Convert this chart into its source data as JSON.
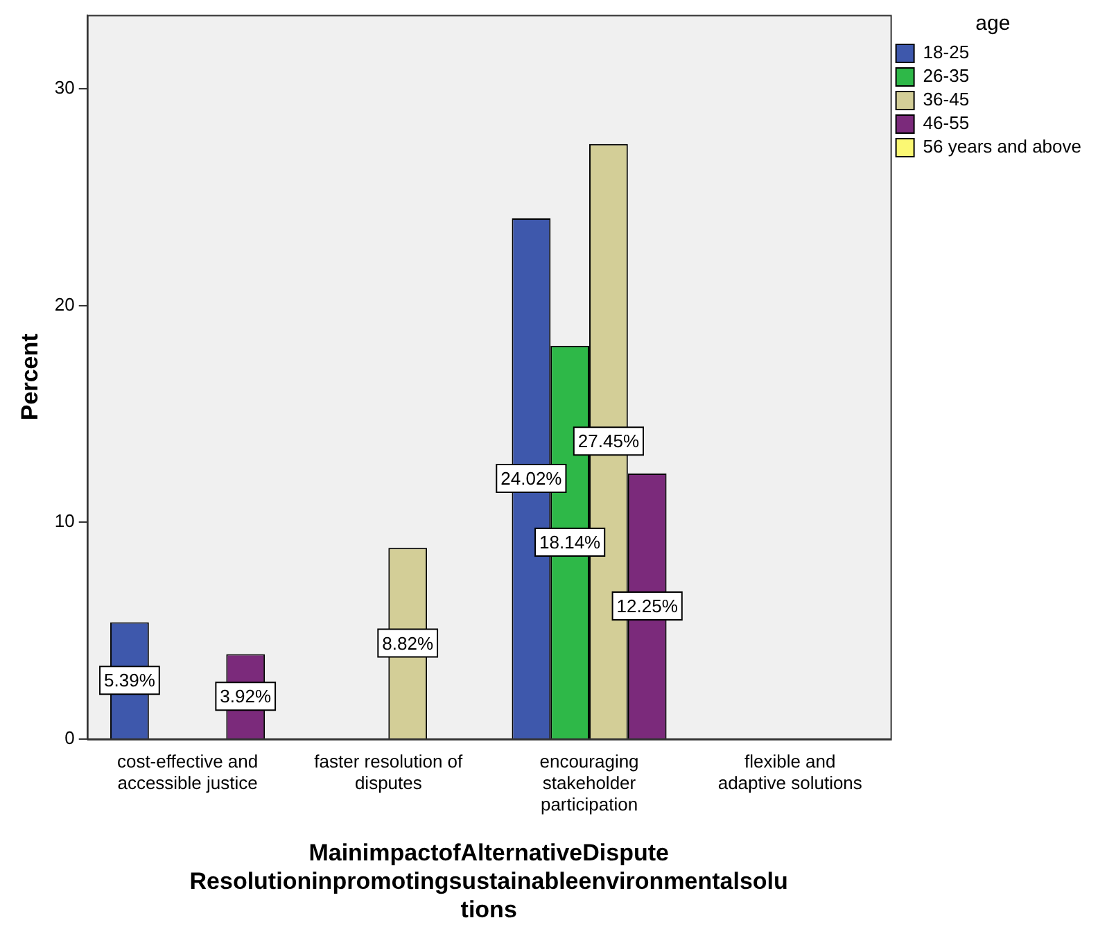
{
  "chart_data": {
    "type": "bar",
    "xlabel": "MainimpactofAlternativeDispute\nResolutioninpromotingsustainableenvironmentalsolu\ntions",
    "ylabel": "Percent",
    "legend_title": "age",
    "legend": "right",
    "categories": [
      "cost-effective and\naccessible justice",
      "faster resolution of\ndisputes",
      "encouraging\nstakeholder\nparticipation",
      "flexible and\nadaptive solutions"
    ],
    "series": [
      {
        "name": "18-25",
        "color": "#3e58ac",
        "values": [
          5.39,
          null,
          24.02,
          null
        ],
        "value_labels": [
          "5.39%",
          null,
          "24.02%",
          null
        ]
      },
      {
        "name": "26-35",
        "color": "#2eb848",
        "values": [
          null,
          null,
          18.14,
          null
        ],
        "value_labels": [
          null,
          null,
          "18.14%",
          null
        ]
      },
      {
        "name": "36-45",
        "color": "#d3ce97",
        "values": [
          null,
          8.82,
          27.45,
          null
        ],
        "value_labels": [
          null,
          "8.82%",
          "27.45%",
          null
        ]
      },
      {
        "name": "46-55",
        "color": "#7b2a7b",
        "values": [
          3.92,
          null,
          12.25,
          null
        ],
        "value_labels": [
          "3.92%",
          null,
          "12.25%",
          null
        ]
      },
      {
        "name": "56 years and above",
        "color": "#fbf873",
        "values": [
          null,
          null,
          null,
          null
        ]
      }
    ],
    "ylim": [
      0,
      33.4
    ],
    "yticks": [
      0,
      10,
      20,
      30
    ],
    "grid": false
  }
}
